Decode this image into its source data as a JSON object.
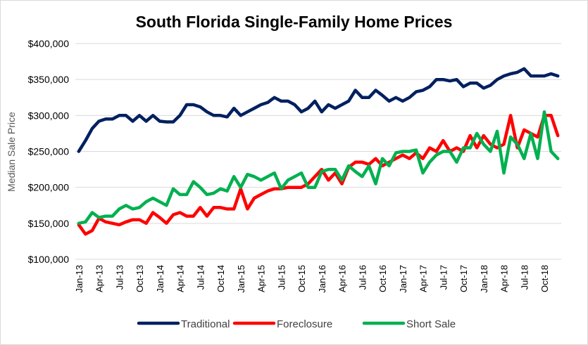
{
  "chart_data": {
    "type": "line",
    "title": "South Florida Single-Family Home Prices",
    "xlabel": "",
    "ylabel": "Median Sale Price",
    "ylim": [
      100000,
      400000
    ],
    "yticks": [
      100000,
      150000,
      200000,
      250000,
      300000,
      350000,
      400000
    ],
    "ytick_labels": [
      "$100,000",
      "$150,000",
      "$200,000",
      "$250,000",
      "$300,000",
      "$350,000",
      "$400,000"
    ],
    "x_tick_labels": [
      "Jan-13",
      "Apr-13",
      "Jul-13",
      "Oct-13",
      "Jan-14",
      "Apr-14",
      "Jul-14",
      "Oct-14",
      "Jan-15",
      "Apr-15",
      "Jul-15",
      "Oct-15",
      "Jan-16",
      "Apr-16",
      "Jul-16",
      "Oct-16",
      "Jan-17",
      "Apr-17",
      "Jul-17",
      "Oct-17",
      "Jan-18",
      "Apr-18",
      "Jul-18",
      "Oct-18"
    ],
    "x_tick_every": 3,
    "grid": true,
    "legend_position": "bottom",
    "series": [
      {
        "name": "Traditional",
        "color": "#002060",
        "values": [
          250000,
          265000,
          282000,
          292000,
          295000,
          295000,
          300000,
          300000,
          292000,
          300000,
          292000,
          300000,
          292000,
          291000,
          291000,
          300000,
          315000,
          315000,
          312000,
          305000,
          300000,
          300000,
          298000,
          310000,
          300000,
          305000,
          310000,
          315000,
          318000,
          325000,
          320000,
          320000,
          315000,
          305000,
          310000,
          320000,
          305000,
          315000,
          310000,
          315000,
          320000,
          335000,
          325000,
          325000,
          335000,
          328000,
          320000,
          325000,
          320000,
          325000,
          333000,
          335000,
          340000,
          350000,
          350000,
          348000,
          350000,
          340000,
          345000,
          345000,
          338000,
          342000,
          350000,
          355000,
          358000,
          360000,
          365000,
          355000,
          355000,
          355000,
          358000,
          355000
        ]
      },
      {
        "name": "Foreclosure",
        "color": "#ff0000",
        "values": [
          148000,
          135000,
          140000,
          157000,
          152000,
          150000,
          148000,
          152000,
          155000,
          155000,
          150000,
          165000,
          158000,
          150000,
          162000,
          165000,
          160000,
          160000,
          172000,
          160000,
          172000,
          172000,
          170000,
          170000,
          198000,
          170000,
          185000,
          190000,
          195000,
          198000,
          198000,
          200000,
          200000,
          200000,
          205000,
          215000,
          225000,
          210000,
          220000,
          205000,
          228000,
          235000,
          235000,
          232000,
          240000,
          230000,
          235000,
          240000,
          245000,
          240000,
          248000,
          240000,
          255000,
          250000,
          265000,
          250000,
          255000,
          250000,
          272000,
          255000,
          272000,
          260000,
          255000,
          260000,
          300000,
          255000,
          280000,
          275000,
          270000,
          300000,
          300000,
          272000
        ]
      },
      {
        "name": "Short Sale",
        "color": "#00b050",
        "values": [
          150000,
          152000,
          165000,
          158000,
          160000,
          160000,
          170000,
          175000,
          170000,
          172000,
          180000,
          185000,
          180000,
          175000,
          198000,
          190000,
          190000,
          208000,
          200000,
          190000,
          192000,
          198000,
          195000,
          215000,
          200000,
          218000,
          215000,
          210000,
          215000,
          220000,
          198000,
          210000,
          215000,
          220000,
          200000,
          200000,
          222000,
          225000,
          225000,
          210000,
          230000,
          222000,
          215000,
          230000,
          205000,
          240000,
          230000,
          248000,
          250000,
          250000,
          252000,
          220000,
          235000,
          245000,
          250000,
          250000,
          235000,
          255000,
          255000,
          275000,
          260000,
          250000,
          278000,
          220000,
          270000,
          260000,
          240000,
          275000,
          240000,
          305000,
          250000,
          240000
        ]
      }
    ]
  }
}
